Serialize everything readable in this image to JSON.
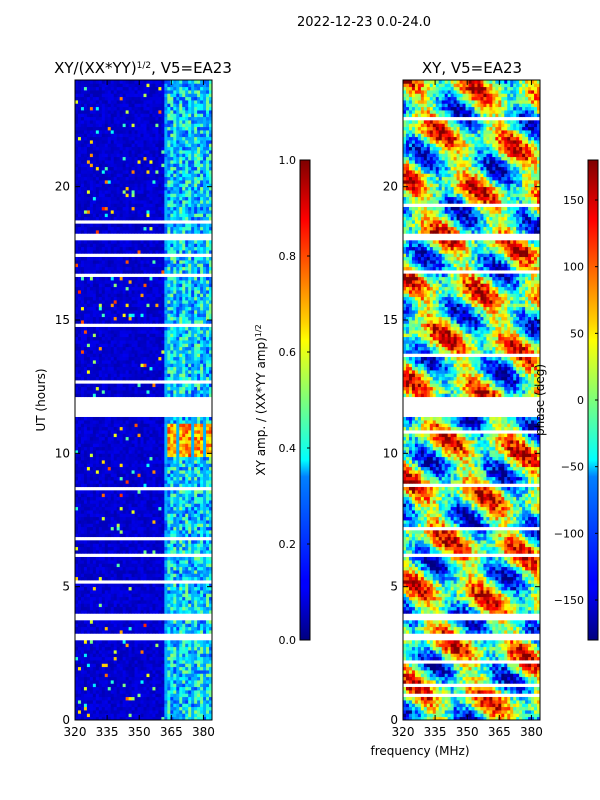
{
  "suptitle": "2022-12-23 0.0-24.0",
  "xlabel_shared": "frequency (MHz)",
  "colors": {
    "white_gap": "#ffffff",
    "axis": "#000000"
  },
  "chart_data": [
    {
      "type": "heatmap",
      "title": "XY/(XX*YY)^{1/2}, V5=EA23",
      "title_main": "XY/(XX*YY)",
      "title_sup": "1/2",
      "title_suffix": ", V5=EA23",
      "xlabel": "frequency (MHz)",
      "ylabel": "UT (hours)",
      "xlim": [
        320,
        384
      ],
      "ylim": [
        0,
        24
      ],
      "xticks": [
        320,
        335,
        350,
        365,
        380
      ],
      "yticks": [
        0,
        5,
        10,
        15,
        20
      ],
      "colormap": "jet",
      "colorbar": {
        "label": "XY amp. / (XX*YY amp)^{1/2}",
        "label_main": "XY amp. / (XX*YY amp)",
        "label_sup": "1/2",
        "range": [
          0.0,
          1.0
        ],
        "ticks": [
          0.0,
          0.2,
          0.4,
          0.6,
          0.8,
          1.0
        ],
        "tick_labels": [
          "0.0",
          "0.2",
          "0.4",
          "0.6",
          "0.8",
          "1.0"
        ]
      },
      "description_values": {
        "low_band_MHz": [
          320,
          362
        ],
        "low_band_typical": 0.05,
        "high_band_MHz": [
          362,
          384
        ],
        "high_band_typical": 0.35,
        "peak_hours": [
          9.9,
          11.1
        ],
        "peak_value": 0.8
      },
      "gaps_hours": [
        [
          3.0,
          3.2
        ],
        [
          3.7,
          4.0
        ],
        [
          6.1,
          6.3
        ],
        [
          11.4,
          12.1
        ],
        [
          18.0,
          18.3
        ]
      ]
    },
    {
      "type": "heatmap",
      "title": "XY, V5=EA23",
      "xlabel": "frequency (MHz)",
      "ylabel": "",
      "xlim": [
        320,
        384
      ],
      "ylim": [
        0,
        24
      ],
      "xticks": [
        320,
        335,
        350,
        365,
        380
      ],
      "yticks": [
        0,
        5,
        10,
        15,
        20
      ],
      "colormap": "jet",
      "colorbar": {
        "label": "phase (deg)",
        "range": [
          -180,
          180
        ],
        "ticks": [
          -150,
          -100,
          -50,
          0,
          50,
          100,
          150
        ],
        "tick_labels": [
          "−150",
          "−100",
          "−50",
          "0",
          "50",
          "100",
          "150"
        ]
      },
      "gaps_hours": [
        [
          3.0,
          3.2
        ],
        [
          3.7,
          4.0
        ],
        [
          6.1,
          6.3
        ],
        [
          11.4,
          12.1
        ],
        [
          18.0,
          18.3
        ]
      ]
    }
  ]
}
